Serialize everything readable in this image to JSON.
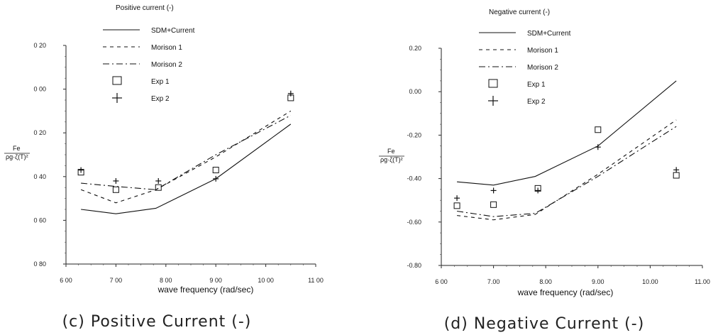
{
  "chart_data": [
    {
      "type": "line",
      "title": "Positive current (-)",
      "caption": "(c) Positive Current (-)",
      "xlabel": "wave frequency (rad/sec)",
      "ylabel_num": "Fe",
      "ylabel_den": "ρg·ζ(T)²",
      "xlim": [
        6.0,
        11.0
      ],
      "ylim": [
        -0.8,
        0.2
      ],
      "xticks": [
        "6 00",
        "7 00",
        "8 00",
        "9 00",
        "10 00",
        "11 00"
      ],
      "yticks": [
        "0 20",
        "0 00",
        "0 20",
        "0 40",
        "0 60",
        "0 80"
      ],
      "ytick_values": [
        0.2,
        0.0,
        -0.2,
        -0.4,
        -0.6,
        -0.8
      ],
      "xtick_values": [
        6,
        7,
        8,
        9,
        10,
        11
      ],
      "series": [
        {
          "name": "SDM+Current",
          "style": "solid",
          "x": [
            6.3,
            7.0,
            7.8,
            9.0,
            10.5
          ],
          "y": [
            -0.55,
            -0.57,
            -0.545,
            -0.41,
            -0.16
          ]
        },
        {
          "name": "Morison 1",
          "style": "dashed",
          "x": [
            6.3,
            7.0,
            7.8,
            9.0,
            10.5
          ],
          "y": [
            -0.46,
            -0.52,
            -0.46,
            -0.31,
            -0.1
          ]
        },
        {
          "name": "Morison 2",
          "style": "dashdot",
          "x": [
            6.3,
            7.0,
            7.8,
            9.0,
            10.5
          ],
          "y": [
            -0.43,
            -0.445,
            -0.46,
            -0.3,
            -0.12
          ]
        },
        {
          "name": "Exp 1",
          "style": "square",
          "x": [
            6.3,
            7.0,
            7.85,
            9.0,
            10.5
          ],
          "y": [
            -0.38,
            -0.46,
            -0.45,
            -0.37,
            -0.04
          ]
        },
        {
          "name": "Exp 2",
          "style": "plus",
          "x": [
            6.3,
            7.0,
            7.85,
            9.0,
            10.5
          ],
          "y": [
            -0.37,
            -0.42,
            -0.42,
            -0.41,
            -0.02
          ]
        }
      ]
    },
    {
      "type": "line",
      "title": "Negative current (-)",
      "caption": "(d) Negative Current (-)",
      "xlabel": "wave frequency (rad/sec)",
      "ylabel_num": "Fe",
      "ylabel_den": "ρg·ζ(T)²",
      "xlim": [
        6.0,
        11.0
      ],
      "ylim": [
        -0.8,
        0.2
      ],
      "xticks": [
        "6 00",
        "7.00",
        "8.00",
        "9.00",
        "10.00",
        "11.00"
      ],
      "yticks": [
        "0.20",
        "0.00",
        "-0.20",
        "-0.40",
        "-0.60",
        "-0.80"
      ],
      "ytick_values": [
        0.2,
        0.0,
        -0.2,
        -0.4,
        -0.6,
        -0.8
      ],
      "xtick_values": [
        6,
        7,
        8,
        9,
        10,
        11
      ],
      "series": [
        {
          "name": "SDM+Current",
          "style": "solid",
          "x": [
            6.3,
            7.0,
            7.8,
            9.0,
            10.5
          ],
          "y": [
            -0.415,
            -0.43,
            -0.39,
            -0.25,
            0.05
          ]
        },
        {
          "name": "Morison 1",
          "style": "dashed",
          "x": [
            6.3,
            7.0,
            7.8,
            9.0,
            10.5
          ],
          "y": [
            -0.57,
            -0.59,
            -0.565,
            -0.38,
            -0.13
          ]
        },
        {
          "name": "Morison 2",
          "style": "dashdot",
          "x": [
            6.3,
            7.0,
            7.8,
            9.0,
            10.5
          ],
          "y": [
            -0.55,
            -0.575,
            -0.56,
            -0.39,
            -0.16
          ]
        },
        {
          "name": "Exp 1",
          "style": "square",
          "x": [
            6.3,
            7.0,
            7.85,
            9.0,
            10.5
          ],
          "y": [
            -0.525,
            -0.52,
            -0.445,
            -0.175,
            -0.385
          ]
        },
        {
          "name": "Exp 2",
          "style": "plus",
          "x": [
            6.3,
            7.0,
            7.85,
            9.0,
            10.5
          ],
          "y": [
            -0.49,
            -0.455,
            -0.455,
            -0.255,
            -0.36
          ]
        }
      ]
    }
  ],
  "legend_labels": [
    "SDM+Current",
    "Morison 1",
    "Morison 2",
    "Exp 1",
    "Exp 2"
  ]
}
